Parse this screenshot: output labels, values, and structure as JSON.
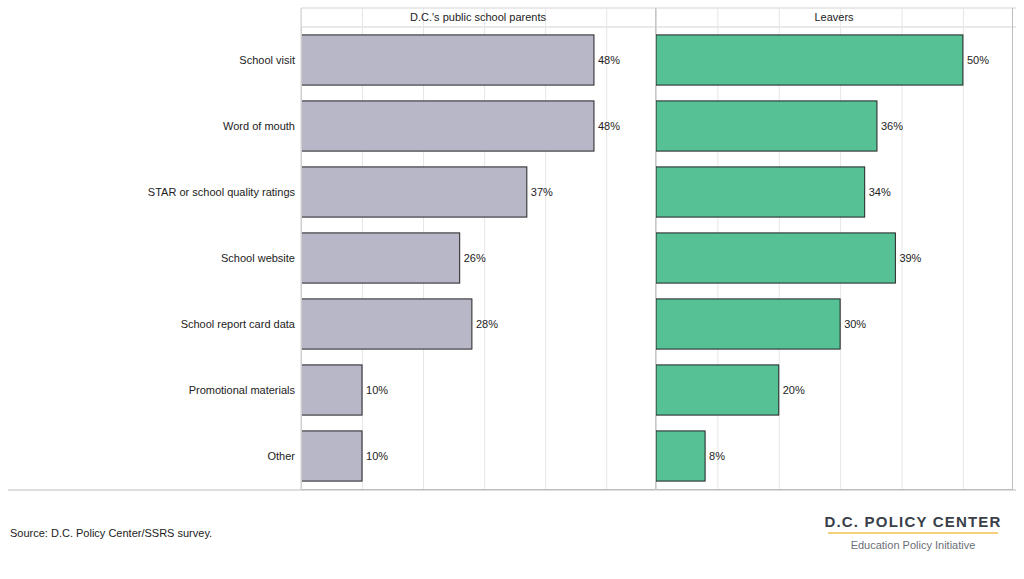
{
  "chart_data": {
    "type": "bar",
    "orientation": "horizontal",
    "categories": [
      "School visit",
      "Word of mouth",
      "STAR or school quality ratings",
      "School website",
      "School report card data",
      "Promotional materials",
      "Other"
    ],
    "series": [
      {
        "name": "D.C.'s public school parents",
        "color": "#b8b7c8",
        "values": [
          48,
          48,
          37,
          26,
          28,
          10,
          10
        ],
        "value_labels": [
          "48%",
          "48%",
          "37%",
          "26%",
          "28%",
          "10%",
          "10%"
        ]
      },
      {
        "name": "Leavers",
        "color": "#55c195",
        "values": [
          50,
          36,
          34,
          39,
          30,
          20,
          8
        ],
        "value_labels": [
          "50%",
          "36%",
          "34%",
          "39%",
          "30%",
          "20%",
          "8%"
        ]
      }
    ],
    "xlim": [
      0,
      58
    ],
    "xticks": [
      0,
      10,
      20,
      30,
      40,
      50
    ],
    "grid": true,
    "tick_labels": "y",
    "data_labels": true,
    "annotations": [
      "Source: D.C. Policy Center/SSRS survey.",
      "D.C. POLICY CENTER",
      "Education Policy Initiative"
    ]
  }
}
